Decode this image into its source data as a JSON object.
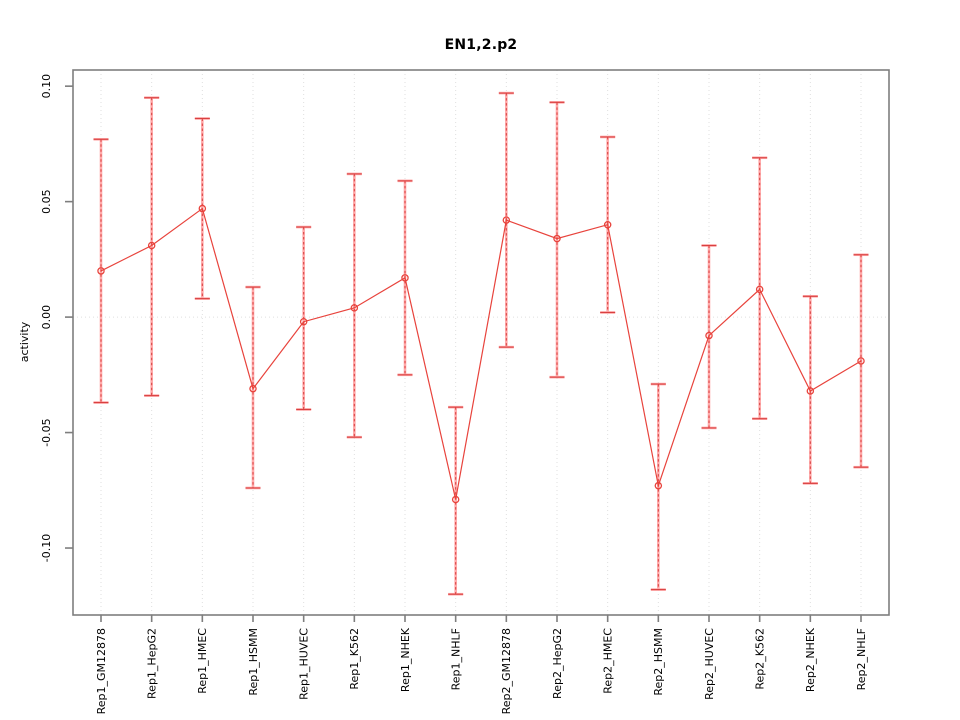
{
  "figure": {
    "background": "#ffffff"
  },
  "chart_data": {
    "type": "line",
    "title": "EN1,2.p2",
    "xlabel": "",
    "ylabel": "activity",
    "legend": "none",
    "grid": "dotted vertical gridline at each category; dotted horizontal line at y=0",
    "error_bars": true,
    "categories": [
      "Rep1_GM12878",
      "Rep1_HepG2",
      "Rep1_HMEC",
      "Rep1_HSMM",
      "Rep1_HUVEC",
      "Rep1_K562",
      "Rep1_NHEK",
      "Rep1_NHLF",
      "Rep2_GM12878",
      "Rep2_HepG2",
      "Rep2_HMEC",
      "Rep2_HSMM",
      "Rep2_HUVEC",
      "Rep2_K562",
      "Rep2_NHEK",
      "Rep2_NHLF"
    ],
    "series": [
      {
        "name": "activity",
        "values": [
          0.02,
          0.031,
          0.047,
          -0.031,
          -0.002,
          0.004,
          0.017,
          -0.079,
          0.042,
          0.034,
          0.04,
          -0.073,
          -0.008,
          0.012,
          -0.032,
          -0.019
        ],
        "upper": [
          0.077,
          0.095,
          0.086,
          0.013,
          0.039,
          0.062,
          0.059,
          -0.039,
          0.097,
          0.093,
          0.078,
          -0.029,
          0.031,
          0.069,
          0.009,
          0.027
        ],
        "lower": [
          -0.037,
          -0.034,
          0.008,
          -0.074,
          -0.04,
          -0.052,
          -0.025,
          -0.12,
          -0.013,
          -0.026,
          0.002,
          -0.118,
          -0.048,
          -0.044,
          -0.072,
          -0.065
        ]
      }
    ],
    "ylim": [
      -0.129,
      0.107
    ],
    "yticks": [
      0.1,
      0.05,
      0.0,
      -0.05,
      -0.1
    ],
    "ytick_labels": [
      "0.10",
      "0.05",
      "0.00",
      "-0.05",
      "-0.10"
    ],
    "colors": {
      "point": "#e8433c",
      "line": "#e8433c",
      "error_bar": "#ffa9a9",
      "error_bar_dash": "#d84040",
      "grid": "#dfdfdf",
      "box": "#7e7e7e",
      "tick": "#7e7e7e",
      "text": "#000000"
    }
  }
}
